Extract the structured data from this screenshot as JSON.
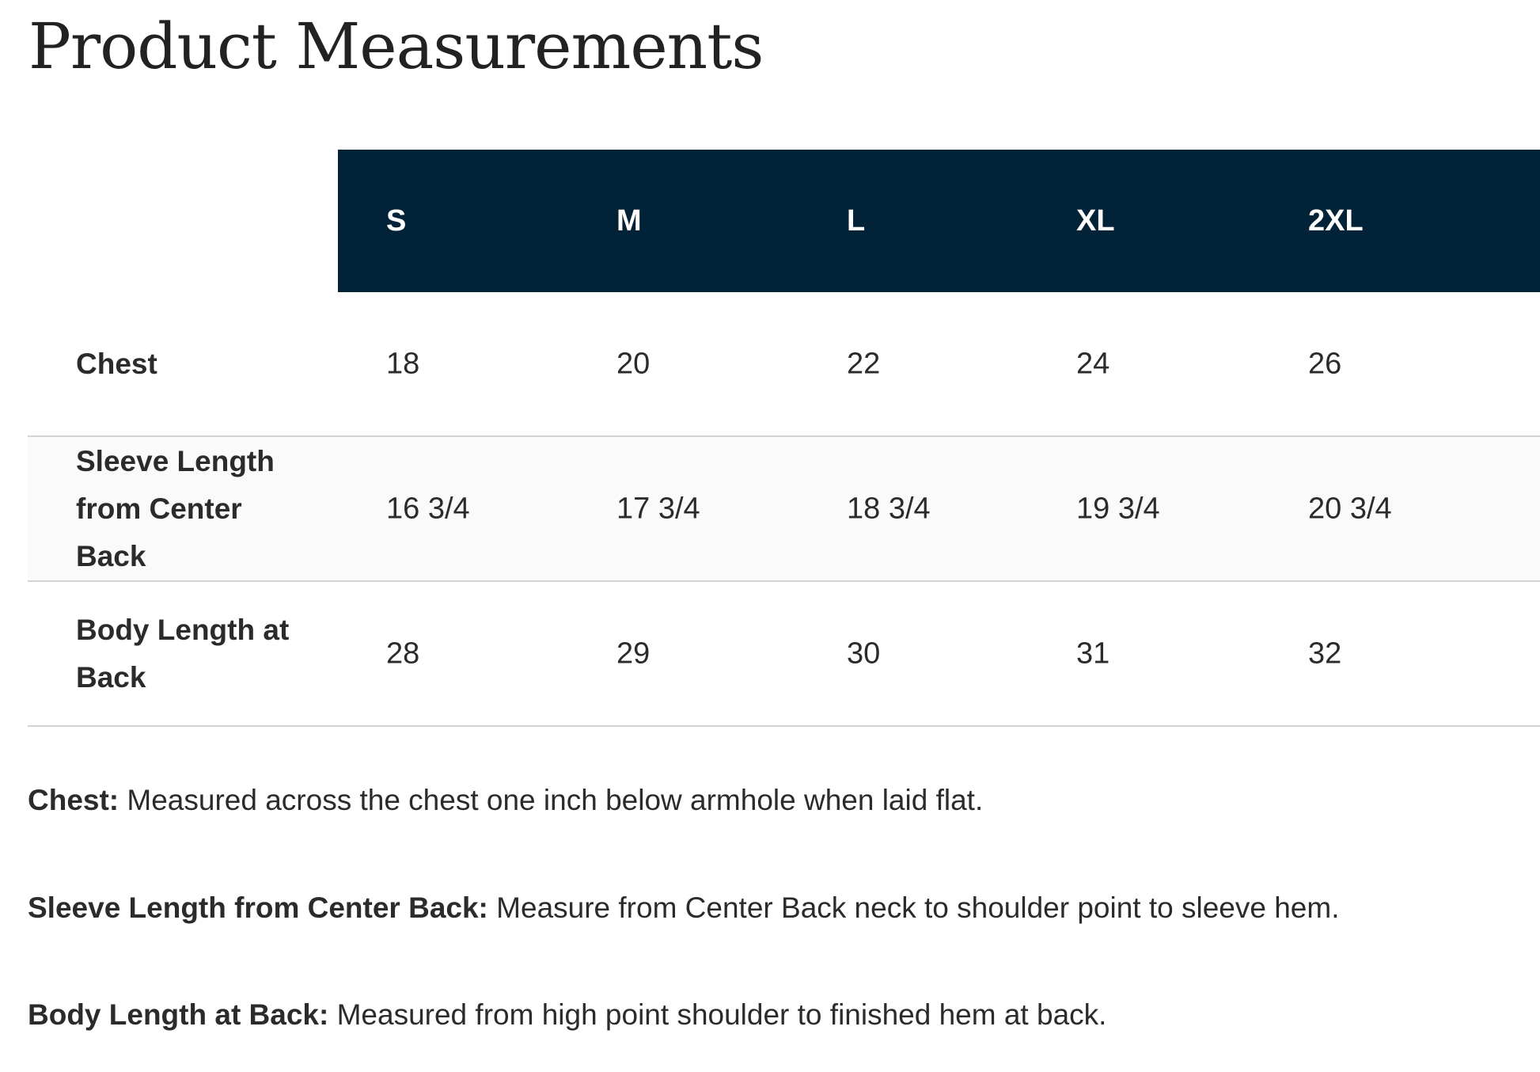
{
  "title": "Product Measurements",
  "colors": {
    "header_bg": "#022337",
    "header_text": "#ffffff",
    "alt_row_bg": "#fafafa"
  },
  "table": {
    "sizes": [
      "S",
      "M",
      "L",
      "XL",
      "2XL"
    ],
    "rows": [
      {
        "label": "Chest",
        "values": [
          "18",
          "20",
          "22",
          "24",
          "26"
        ]
      },
      {
        "label": "Sleeve Length from Center Back",
        "values": [
          "16 3/4",
          "17 3/4",
          "18 3/4",
          "19 3/4",
          "20 3/4"
        ]
      },
      {
        "label": "Body Length at Back",
        "values": [
          "28",
          "29",
          "30",
          "31",
          "32"
        ]
      }
    ]
  },
  "notes": [
    {
      "term": "Chest:",
      "text": " Measured across the chest one inch below armhole when laid flat."
    },
    {
      "term": "Sleeve Length from Center Back:",
      "text": " Measure from Center Back neck to shoulder point to sleeve hem."
    },
    {
      "term": "Body Length at Back:",
      "text": " Measured from high point shoulder to finished hem at back."
    }
  ]
}
